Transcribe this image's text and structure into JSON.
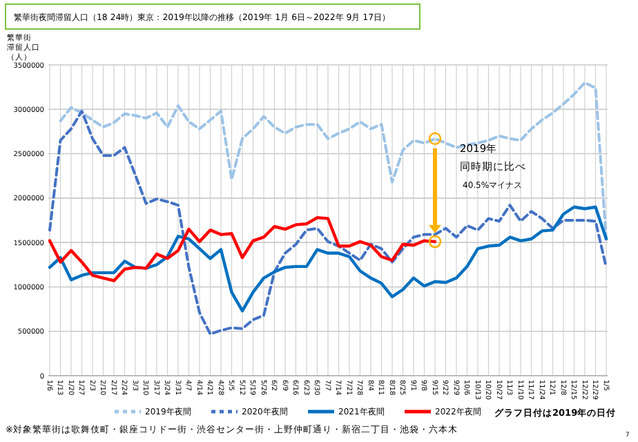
{
  "chart_data": {
    "type": "line",
    "title": "繁華街夜間滞留人口（18 24時）東京：2019年以降の推移（2019年 1月 6日～2022年 9月 17日）",
    "ylabel": "繁華街滞留人口（人）",
    "categories": [
      "1/6",
      "1/13",
      "1/20",
      "1/27",
      "2/3",
      "2/10",
      "2/17",
      "2/24",
      "3/3",
      "3/10",
      "3/17",
      "3/24",
      "3/31",
      "4/7",
      "4/14",
      "4/21",
      "4/28",
      "5/5",
      "5/12",
      "5/19",
      "5/26",
      "6/2",
      "6/9",
      "6/16",
      "6/23",
      "6/30",
      "7/7",
      "7/14",
      "7/21",
      "7/28",
      "8/4",
      "8/11",
      "8/18",
      "8/25",
      "9/1",
      "9/8",
      "9/15",
      "9/22",
      "9/29",
      "10/6",
      "10/13",
      "10/20",
      "10/27",
      "11/3",
      "11/10",
      "11/17",
      "11/24",
      "12/1",
      "12/8",
      "12/15",
      "12/22",
      "12/29",
      "1/5"
    ],
    "series": [
      {
        "name": "2019年夜間",
        "color": "#9dc3e6",
        "line_style": "dashed",
        "values": [
          null,
          2870000,
          3020000,
          2960000,
          2880000,
          2800000,
          2850000,
          2950000,
          2930000,
          2900000,
          2960000,
          2800000,
          3040000,
          2860000,
          2780000,
          2880000,
          2980000,
          2210000,
          2670000,
          2780000,
          2920000,
          2800000,
          2730000,
          2800000,
          2830000,
          2830000,
          2670000,
          2730000,
          2780000,
          2860000,
          2780000,
          2830000,
          2180000,
          2540000,
          2650000,
          2620000,
          2670000,
          2620000,
          2570000,
          2600000,
          2620000,
          2650000,
          2700000,
          2670000,
          2650000,
          2780000,
          2880000,
          2960000,
          3060000,
          3170000,
          3300000,
          3240000,
          1540000
        ]
      },
      {
        "name": "2020年夜間",
        "color": "#4472c4",
        "line_style": "dashed",
        "values": [
          1640000,
          2650000,
          2780000,
          2980000,
          2670000,
          2480000,
          2480000,
          2570000,
          2260000,
          1940000,
          1990000,
          1960000,
          1920000,
          1220000,
          710000,
          470000,
          510000,
          540000,
          530000,
          630000,
          680000,
          1170000,
          1380000,
          1480000,
          1640000,
          1660000,
          1510000,
          1460000,
          1380000,
          1300000,
          1480000,
          1430000,
          1280000,
          1430000,
          1560000,
          1590000,
          1590000,
          1660000,
          1560000,
          1690000,
          1640000,
          1770000,
          1740000,
          1920000,
          1740000,
          1850000,
          1770000,
          1660000,
          1750000,
          1750000,
          1750000,
          1740000,
          1220000
        ]
      },
      {
        "name": "2021年夜間",
        "color": "#0070c0",
        "line_style": "solid",
        "values": [
          1220000,
          1330000,
          1080000,
          1130000,
          1160000,
          1160000,
          1160000,
          1290000,
          1220000,
          1210000,
          1250000,
          1340000,
          1570000,
          1540000,
          1430000,
          1320000,
          1420000,
          940000,
          730000,
          940000,
          1100000,
          1170000,
          1220000,
          1230000,
          1230000,
          1420000,
          1380000,
          1380000,
          1340000,
          1180000,
          1100000,
          1040000,
          890000,
          970000,
          1100000,
          1010000,
          1060000,
          1050000,
          1100000,
          1230000,
          1430000,
          1460000,
          1470000,
          1560000,
          1520000,
          1540000,
          1630000,
          1640000,
          1820000,
          1900000,
          1880000,
          1900000,
          1540000
        ]
      },
      {
        "name": "2022年夜間",
        "color": "#ff0000",
        "line_style": "solid",
        "values": [
          1520000,
          1280000,
          1410000,
          1280000,
          1130000,
          1100000,
          1070000,
          1200000,
          1220000,
          1210000,
          1370000,
          1320000,
          1410000,
          1650000,
          1510000,
          1640000,
          1590000,
          1600000,
          1330000,
          1520000,
          1560000,
          1680000,
          1650000,
          1700000,
          1710000,
          1780000,
          1770000,
          1460000,
          1460000,
          1510000,
          1470000,
          1340000,
          1300000,
          1480000,
          1470000,
          1520000,
          1510000,
          null,
          null,
          null,
          null,
          null,
          null,
          null,
          null,
          null,
          null,
          null,
          null,
          null,
          null,
          null,
          null
        ]
      }
    ],
    "ylim": [
      0,
      3500000
    ],
    "yticks": [
      0,
      500000,
      1000000,
      1500000,
      2000000,
      2500000,
      3000000,
      3500000
    ],
    "grid": true,
    "legend": "bottom",
    "annotations": [
      "2019年",
      "同時期に比べ",
      "40.5%マイナス",
      "※対象繁華街は歌舞伎町・銀座コリドー街・渋谷センター街・上野仲町通り・新宿二丁目・池袋・六本木",
      "グラフ日付は2019年の日付",
      "7"
    ]
  }
}
